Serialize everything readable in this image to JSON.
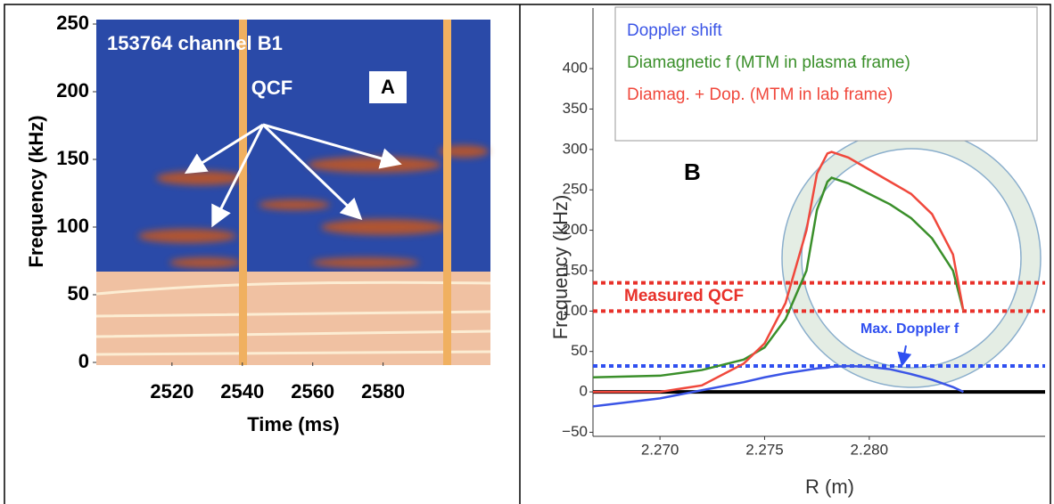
{
  "chart_data": [
    {
      "type": "spectrogram",
      "annotations": [
        "153764 channel B1",
        "QCF",
        "A"
      ],
      "x_label": "Time (ms)",
      "y_label": "Frequency (kHz)",
      "xlim": [
        2498.5,
        2610.5
      ],
      "xticks": [
        2520,
        2540,
        2560,
        2580
      ],
      "ylim": [
        0,
        250
      ],
      "yticks": [
        0,
        50,
        100,
        150,
        200,
        250
      ]
    },
    {
      "type": "line",
      "x_label": "R (m)",
      "y_label": "Frequency (kHz)",
      "annotations": [
        "B",
        "Measured QCF",
        "Max. Doppler f"
      ],
      "x": [
        2.2668,
        2.27,
        2.272,
        2.274,
        2.275,
        2.276,
        2.277,
        2.2775,
        2.278,
        2.2782,
        2.279,
        2.28,
        2.281,
        2.282,
        2.283,
        2.284,
        2.2845
      ],
      "series": [
        {
          "name": "Doppler shift",
          "color": "#3b55e6",
          "values": [
            -18,
            -8,
            2,
            12,
            18,
            23,
            27,
            29,
            30,
            31,
            32,
            31,
            28,
            22,
            15,
            6,
            0
          ]
        },
        {
          "name": "Diamagnetic f (MTM in plasma frame)",
          "color": "#3a8f2a",
          "values": [
            18,
            20,
            27,
            40,
            55,
            90,
            150,
            225,
            260,
            265,
            258,
            245,
            232,
            215,
            190,
            150,
            100
          ]
        },
        {
          "name": "Diamag. + Dop. (MTM in lab frame)",
          "color": "#f0483c",
          "values": [
            0,
            0,
            8,
            35,
            60,
            110,
            200,
            270,
            295,
            297,
            290,
            275,
            260,
            245,
            220,
            170,
            100
          ]
        }
      ],
      "reference_lines": [
        {
          "value": 135,
          "color": "#e8312a"
        },
        {
          "value": 100,
          "color": "#e8312a"
        },
        {
          "value": 32,
          "color": "#2f4ff0"
        },
        {
          "value": 0,
          "color": "#000000"
        }
      ],
      "xlim": [
        2.2668,
        2.2884
      ],
      "xticks": [
        {
          "value": 2.27,
          "label": "2.270"
        },
        {
          "value": 2.275,
          "label": "2.275"
        },
        {
          "value": 2.28,
          "label": "2.280"
        }
      ],
      "ylim": [
        -55,
        475
      ],
      "yticks": [
        {
          "value": -50,
          "label": "−50"
        },
        0,
        50,
        100,
        150,
        200,
        250,
        300,
        350,
        400
      ]
    }
  ]
}
